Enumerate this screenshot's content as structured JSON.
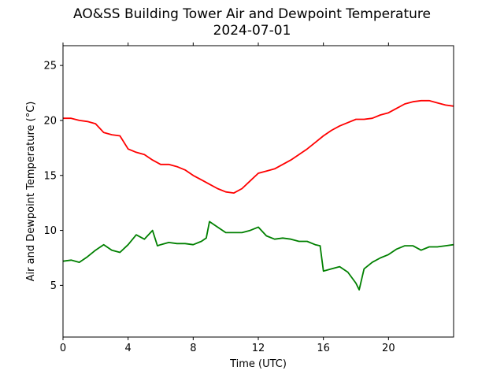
{
  "chart": {
    "title": "AO&SS Building Tower Air and Dewpoint Temperature",
    "subtitle": "2024-07-01"
  },
  "chart_data": {
    "type": "line",
    "title": "AO&SS Building Tower Air and Dewpoint Temperature",
    "subtitle": "2024-07-01",
    "xlabel": "Time (UTC)",
    "ylabel": "Air and Dewpoint Temperature (°C)",
    "xlim": [
      0,
      24
    ],
    "ylim": [
      0.3,
      26.8
    ],
    "x_ticks": [
      0,
      4,
      8,
      12,
      16,
      20
    ],
    "y_ticks": [
      5,
      10,
      15,
      20,
      25
    ],
    "grid": false,
    "legend": "none",
    "series": [
      {
        "color": "#ff0000",
        "x": [
          0,
          0.5,
          1,
          1.5,
          2,
          2.5,
          3,
          3.5,
          4,
          4.5,
          5,
          5.5,
          6,
          6.5,
          7,
          7.5,
          8,
          8.5,
          9,
          9.5,
          10,
          10.5,
          11,
          11.5,
          12,
          12.5,
          13,
          13.5,
          14,
          14.5,
          15,
          15.5,
          16,
          16.5,
          17,
          17.5,
          18,
          18.5,
          19,
          19.5,
          20,
          20.5,
          21,
          21.5,
          22,
          22.5,
          23,
          23.5,
          24
        ],
        "y": [
          20.2,
          20.2,
          20.0,
          19.9,
          19.7,
          18.9,
          18.7,
          18.6,
          17.4,
          17.1,
          16.9,
          16.4,
          16.0,
          16.0,
          15.8,
          15.5,
          15.0,
          14.6,
          14.2,
          13.8,
          13.5,
          13.4,
          13.8,
          14.5,
          15.2,
          15.4,
          15.6,
          16.0,
          16.4,
          16.9,
          17.4,
          18.0,
          18.6,
          19.1,
          19.5,
          19.8,
          20.1,
          20.1,
          20.2,
          20.5,
          20.7,
          21.1,
          21.5,
          21.7,
          21.8,
          21.8,
          21.6,
          21.4,
          21.3
        ]
      },
      {
        "color": "#008000",
        "x": [
          0,
          0.5,
          1,
          1.5,
          2,
          2.5,
          3,
          3.5,
          4,
          4.5,
          5,
          5.5,
          5.8,
          6,
          6.5,
          7,
          7.5,
          8,
          8.5,
          8.8,
          9,
          9.5,
          10,
          10.5,
          11,
          11.5,
          12,
          12.5,
          13,
          13.5,
          14,
          14.5,
          15,
          15.5,
          15.8,
          16,
          16.5,
          17,
          17.5,
          18,
          18.2,
          18.5,
          19,
          19.5,
          20,
          20.5,
          21,
          21.5,
          22,
          22.5,
          23,
          23.5,
          24
        ],
        "y": [
          7.2,
          7.3,
          7.1,
          7.6,
          8.2,
          8.7,
          8.2,
          8.0,
          8.7,
          9.6,
          9.2,
          10.0,
          8.6,
          8.7,
          8.9,
          8.8,
          8.8,
          8.7,
          9.0,
          9.3,
          10.8,
          10.3,
          9.8,
          9.8,
          9.8,
          10.0,
          10.3,
          9.5,
          9.2,
          9.3,
          9.2,
          9.0,
          9.0,
          8.7,
          8.6,
          6.3,
          6.5,
          6.7,
          6.2,
          5.2,
          4.6,
          6.5,
          7.1,
          7.5,
          7.8,
          8.3,
          8.6,
          8.6,
          8.2,
          8.5,
          8.5,
          8.6,
          8.7
        ]
      }
    ]
  }
}
